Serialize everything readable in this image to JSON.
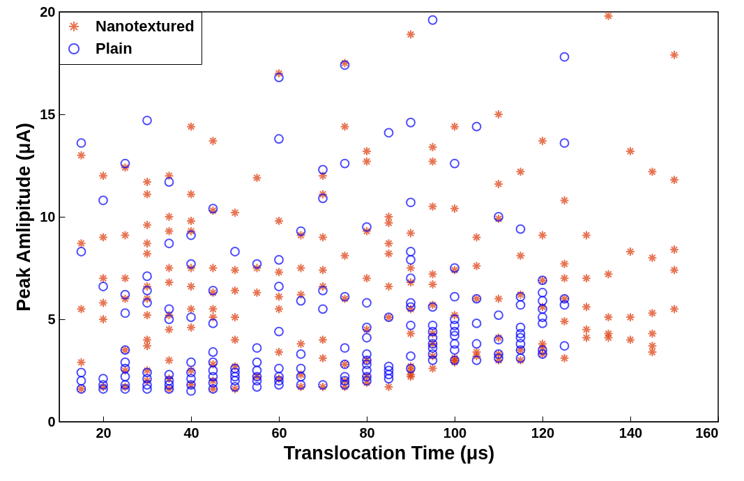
{
  "chart_data": {
    "type": "scatter",
    "xlabel": "Translocation Time (μs)",
    "ylabel": "Peak Amlipitude (μA)",
    "xlim": [
      10,
      160
    ],
    "xticks": [
      20,
      40,
      60,
      80,
      100,
      120,
      140,
      160
    ],
    "ylim": [
      0,
      20
    ],
    "yticks": [
      0,
      5,
      10,
      15,
      20
    ],
    "grid": false,
    "legend": "top left",
    "series": [
      {
        "name": "Nanotextured",
        "color": "#dd3a0a",
        "marker": "cross",
        "x": [
          15,
          15,
          15,
          15,
          15,
          20,
          20,
          20,
          20,
          20,
          20,
          25,
          25,
          25,
          25,
          25,
          25,
          25,
          30,
          30,
          30,
          30,
          30,
          30,
          30,
          30,
          30,
          30,
          30,
          30,
          35,
          35,
          35,
          35,
          35,
          35,
          35,
          35,
          35,
          35,
          40,
          40,
          40,
          40,
          40,
          40,
          40,
          40,
          40,
          40,
          45,
          45,
          45,
          45,
          45,
          45,
          45,
          45,
          45,
          50,
          50,
          50,
          50,
          50,
          50,
          50,
          55,
          55,
          55,
          55,
          60,
          60,
          60,
          60,
          60,
          60,
          60,
          65,
          65,
          65,
          65,
          65,
          65,
          70,
          70,
          70,
          70,
          70,
          70,
          70,
          70,
          75,
          75,
          75,
          75,
          75,
          75,
          75,
          80,
          80,
          80,
          80,
          80,
          80,
          80,
          80,
          85,
          85,
          85,
          85,
          85,
          85,
          85,
          90,
          90,
          90,
          90,
          90,
          90,
          90,
          90,
          90,
          90,
          95,
          95,
          95,
          95,
          95,
          95,
          95,
          95,
          95,
          95,
          100,
          100,
          100,
          100,
          100,
          100,
          100,
          105,
          105,
          105,
          105,
          105,
          110,
          110,
          110,
          110,
          110,
          110,
          110,
          115,
          115,
          115,
          115,
          115,
          120,
          120,
          120,
          120,
          120,
          120,
          120,
          125,
          125,
          125,
          125,
          125,
          125,
          130,
          130,
          130,
          130,
          130,
          135,
          135,
          135,
          135,
          135,
          140,
          140,
          140,
          140,
          145,
          145,
          145,
          145,
          145,
          145,
          150,
          150,
          150,
          150,
          150
        ],
        "values": [
          13.0,
          8.7,
          5.5,
          2.9,
          1.6,
          12.0,
          9.0,
          7.0,
          5.8,
          5.0,
          1.7,
          12.4,
          9.1,
          7.0,
          6.0,
          3.5,
          2.5,
          1.7,
          11.7,
          11.1,
          9.6,
          8.7,
          8.2,
          6.6,
          6.0,
          5.2,
          4.0,
          3.7,
          2.5,
          2.0,
          12.0,
          10.0,
          9.3,
          7.5,
          6.8,
          5.2,
          4.5,
          3.0,
          2.1,
          1.6,
          14.4,
          11.1,
          9.8,
          9.3,
          7.5,
          6.6,
          5.5,
          4.6,
          2.5,
          1.8,
          13.7,
          10.3,
          7.5,
          6.3,
          5.5,
          5.1,
          2.8,
          2.0,
          1.6,
          10.2,
          7.4,
          6.4,
          5.1,
          4.0,
          2.7,
          1.6,
          11.9,
          7.5,
          6.3,
          2.2,
          17.0,
          9.8,
          7.3,
          6.1,
          5.5,
          3.4,
          2.1,
          9.1,
          7.5,
          6.2,
          3.8,
          2.3,
          1.7,
          12.0,
          11.1,
          9.0,
          7.4,
          6.6,
          4.0,
          3.1,
          1.7,
          17.5,
          14.4,
          8.1,
          6.0,
          2.8,
          2.0,
          1.7,
          13.2,
          12.7,
          9.3,
          7.0,
          4.5,
          3.0,
          2.2,
          1.9,
          10.0,
          9.7,
          8.7,
          8.2,
          6.6,
          5.1,
          1.7,
          18.9,
          9.2,
          7.5,
          6.8,
          5.5,
          4.3,
          2.7,
          2.5,
          2.3,
          2.2,
          13.4,
          12.7,
          10.5,
          7.2,
          6.7,
          5.7,
          4.3,
          3.8,
          3.2,
          2.6,
          14.4,
          10.4,
          7.4,
          5.2,
          3.1,
          3.0,
          2.9,
          9.0,
          7.6,
          6.0,
          3.4,
          3.2,
          15.0,
          11.6,
          9.9,
          6.0,
          4.1,
          3.3,
          3.0,
          12.2,
          8.1,
          6.2,
          3.5,
          3.0,
          13.7,
          9.1,
          6.9,
          5.6,
          3.8,
          3.6,
          3.3,
          10.8,
          7.7,
          7.0,
          6.0,
          4.9,
          3.1,
          9.1,
          7.0,
          5.6,
          4.5,
          4.1,
          19.8,
          7.2,
          5.1,
          4.3,
          4.1,
          13.2,
          8.3,
          5.1,
          4.0,
          12.2,
          8.0,
          5.3,
          4.3,
          3.7,
          3.4,
          17.9,
          11.8,
          8.4,
          7.4,
          5.5
        ]
      },
      {
        "name": "Plain",
        "color": "#0000ff",
        "marker": "circle",
        "x": [
          15,
          15,
          15,
          15,
          15,
          20,
          20,
          20,
          20,
          20,
          25,
          25,
          25,
          25,
          25,
          25,
          25,
          25,
          25,
          30,
          30,
          30,
          30,
          30,
          30,
          30,
          30,
          35,
          35,
          35,
          35,
          35,
          35,
          35,
          35,
          40,
          40,
          40,
          40,
          40,
          40,
          40,
          40,
          45,
          45,
          45,
          45,
          45,
          45,
          45,
          45,
          45,
          50,
          50,
          50,
          50,
          50,
          50,
          55,
          55,
          55,
          55,
          55,
          55,
          55,
          60,
          60,
          60,
          60,
          60,
          60,
          60,
          60,
          60,
          65,
          65,
          65,
          65,
          65,
          65,
          70,
          70,
          70,
          70,
          70,
          75,
          75,
          75,
          75,
          75,
          75,
          75,
          75,
          80,
          80,
          80,
          80,
          80,
          80,
          80,
          80,
          80,
          80,
          85,
          85,
          85,
          85,
          85,
          85,
          90,
          90,
          90,
          90,
          90,
          90,
          90,
          90,
          90,
          90,
          95,
          95,
          95,
          95,
          95,
          95,
          95,
          95,
          95,
          100,
          100,
          100,
          100,
          100,
          100,
          100,
          100,
          100,
          100,
          105,
          105,
          105,
          105,
          105,
          110,
          110,
          110,
          110,
          110,
          115,
          115,
          115,
          115,
          115,
          115,
          115,
          115,
          115,
          120,
          120,
          120,
          120,
          120,
          120,
          120,
          120,
          125,
          125,
          125,
          125,
          125
        ],
        "values": [
          13.6,
          8.3,
          2.4,
          2.0,
          1.6,
          10.8,
          6.6,
          2.1,
          1.8,
          1.6,
          12.6,
          6.2,
          5.3,
          3.5,
          2.9,
          2.6,
          2.2,
          1.8,
          1.6,
          14.7,
          7.1,
          6.4,
          5.8,
          2.4,
          2.1,
          1.8,
          1.6,
          11.7,
          8.7,
          5.5,
          5.0,
          2.3,
          2.0,
          1.8,
          1.6,
          9.1,
          7.7,
          5.1,
          2.9,
          2.4,
          2.1,
          1.8,
          1.5,
          10.4,
          6.4,
          4.8,
          3.4,
          2.9,
          2.5,
          2.2,
          1.9,
          1.6,
          8.3,
          2.6,
          2.4,
          2.2,
          2.0,
          1.7,
          7.7,
          3.6,
          2.9,
          2.5,
          2.2,
          2.0,
          1.7,
          16.8,
          13.8,
          7.9,
          6.6,
          4.4,
          2.6,
          2.2,
          2.0,
          1.8,
          9.3,
          5.9,
          3.3,
          2.6,
          2.2,
          1.8,
          12.3,
          10.9,
          6.4,
          5.5,
          1.8,
          17.4,
          12.6,
          6.1,
          3.6,
          2.8,
          2.2,
          2.0,
          1.8,
          9.5,
          5.8,
          4.6,
          4.1,
          3.3,
          3.0,
          2.8,
          2.5,
          2.2,
          2.0,
          14.1,
          5.1,
          2.7,
          2.5,
          2.3,
          2.1,
          14.6,
          10.7,
          8.3,
          7.9,
          7.0,
          5.8,
          5.6,
          4.7,
          3.2,
          2.6,
          19.6,
          5.6,
          4.7,
          4.4,
          4.1,
          3.8,
          3.6,
          3.3,
          3.0,
          12.6,
          7.5,
          6.1,
          5.0,
          4.7,
          4.4,
          4.2,
          3.8,
          3.5,
          3.0,
          14.4,
          6.0,
          4.8,
          3.8,
          3.0,
          10.0,
          5.2,
          4.0,
          3.3,
          3.1,
          9.4,
          6.1,
          5.7,
          4.6,
          4.3,
          4.1,
          3.8,
          3.5,
          3.1,
          6.9,
          6.3,
          5.9,
          5.5,
          5.1,
          4.8,
          3.5,
          3.3,
          17.8,
          13.6,
          6.0,
          5.7,
          3.7
        ]
      }
    ]
  }
}
